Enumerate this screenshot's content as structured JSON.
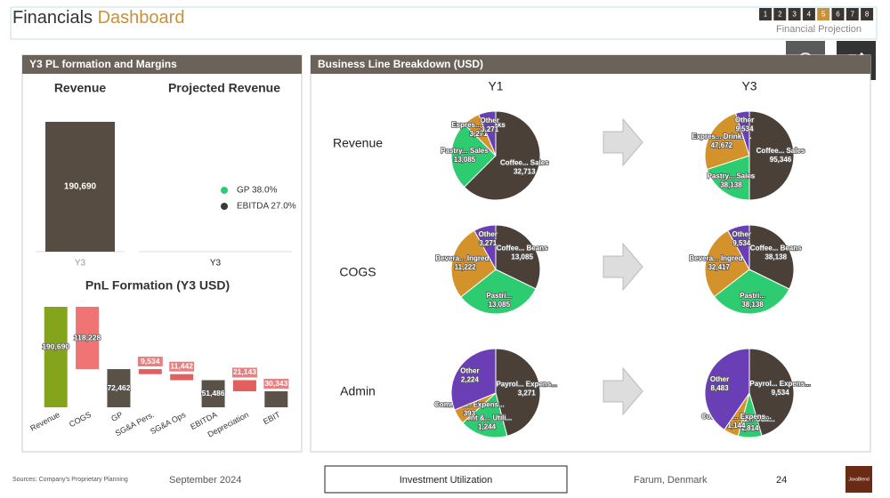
{
  "header": {
    "title": "Financials",
    "title_highlight": "Dashboard",
    "pages": [
      1,
      2,
      3,
      4,
      5,
      6,
      7,
      8
    ],
    "current_page": 5,
    "subtitle": "Financial Projection"
  },
  "panels": [
    {
      "title": "Y3 PL formation and Margins"
    },
    {
      "title": "Business Line Breakdown (USD)"
    }
  ],
  "breakdown": {
    "columns": [
      "Y1",
      "Y3"
    ],
    "rows": [
      "Revenue",
      "COGS",
      "Admin"
    ]
  },
  "chart_data": [
    {
      "type": "bar",
      "title": "Revenue",
      "categories": [
        "Y3"
      ],
      "values": [
        190690
      ],
      "value_labels": [
        "190,690"
      ],
      "color": "#564c42"
    },
    {
      "type": "bar",
      "title": "Projected Revenue",
      "categories": [
        "Y3"
      ],
      "series": [
        {
          "name": "GP 38.0%",
          "color": "#2ecc71",
          "values": [
            null
          ]
        },
        {
          "name": "EBITDA 27.0%",
          "color": "#3d3a36",
          "values": [
            null
          ]
        }
      ]
    },
    {
      "type": "waterfall",
      "title": "PnL Formation (Y3  USD)",
      "categories": [
        "Revenue",
        "COGS",
        "GP",
        "SG&A Pers.",
        "SG&A Ops",
        "EBITDA",
        "Depreciation",
        "EBIT"
      ],
      "values": [
        190690,
        118228,
        72462,
        9534,
        11442,
        51486,
        21143,
        30343
      ],
      "measure": [
        "total",
        "decrease",
        "total",
        "decrease",
        "decrease",
        "total",
        "decrease",
        "total"
      ],
      "value_labels": [
        "190,690",
        "118,228",
        "72,462",
        "9,534",
        "11,442",
        "51,486",
        "21,143",
        "30,343"
      ],
      "colors": [
        "#84a41c",
        "#f07474",
        "#5a5147",
        "#e06060",
        "#e06060",
        "#5a5147",
        "#e06060",
        "#5a5147"
      ]
    },
    {
      "type": "pie",
      "categories": [
        "Coffee... Sales",
        "Pastry... Sales",
        "Espres... Drinks",
        "Other"
      ],
      "values": [
        32713,
        13085,
        3271,
        3271
      ],
      "value_labels": [
        "32,713",
        "13,085",
        "3,271",
        "3,271"
      ],
      "colors": [
        "#4a4038",
        "#2ecc71",
        "#d4922a",
        "#6a3fb5"
      ]
    },
    {
      "type": "pie",
      "categories": [
        "Coffee... Sales",
        "Pastry... Sales",
        "Expres... Drinks...",
        "Other"
      ],
      "values": [
        95346,
        38138,
        47672,
        9534
      ],
      "value_labels": [
        "95,346",
        "38,138",
        "47,672",
        "9,534"
      ],
      "colors": [
        "#4a4038",
        "#2ecc71",
        "#d4922a",
        "#6a3fb5"
      ]
    },
    {
      "type": "pie",
      "categories": [
        "Coffee... Beans",
        "Pastri...",
        "Bevera... Ingred...",
        "Other"
      ],
      "values": [
        13085,
        13085,
        11222,
        3271
      ],
      "value_labels": [
        "13,085",
        "13,085",
        "11,222",
        "3,271"
      ],
      "colors": [
        "#4a4038",
        "#2ecc71",
        "#d4922a",
        "#6a3fb5"
      ]
    },
    {
      "type": "pie",
      "categories": [
        "Coffee... Beans",
        "Pastri...",
        "Bevera... Ingred...",
        "Other"
      ],
      "values": [
        38138,
        38138,
        32417,
        9534
      ],
      "value_labels": [
        "38,138",
        "38,138",
        "32,417",
        "9,534"
      ],
      "colors": [
        "#4a4038",
        "#2ecc71",
        "#d4922a",
        "#6a3fb5"
      ]
    },
    {
      "type": "pie",
      "categories": [
        "Payrol... Expens...",
        "Rent &... Utili...",
        "Commun... Expens...",
        "Other"
      ],
      "values": [
        3271,
        1244,
        393,
        2224
      ],
      "value_labels": [
        "3,271",
        "1,244",
        "393",
        "2,224"
      ],
      "colors": [
        "#4a4038",
        "#2ecc71",
        "#d4922a",
        "#6a3fb5"
      ]
    },
    {
      "type": "pie",
      "categories": [
        "Payrol... Expens...",
        "Rent &... Utili...",
        "Commun... Expens...",
        "Other"
      ],
      "values": [
        9534,
        1814,
        1144,
        8483
      ],
      "value_labels": [
        "9,534",
        "1,814",
        "1,144",
        "8,483"
      ],
      "colors": [
        "#4a4038",
        "#2ecc71",
        "#d4922a",
        "#6a3fb5"
      ]
    }
  ],
  "footer": {
    "source": "Sources: Company's Proprietary Planning",
    "date": "September 2024",
    "section": "Investment Utilization",
    "location": "Farum, Denmark",
    "page_number": "24",
    "logo": "JavaBlend"
  }
}
